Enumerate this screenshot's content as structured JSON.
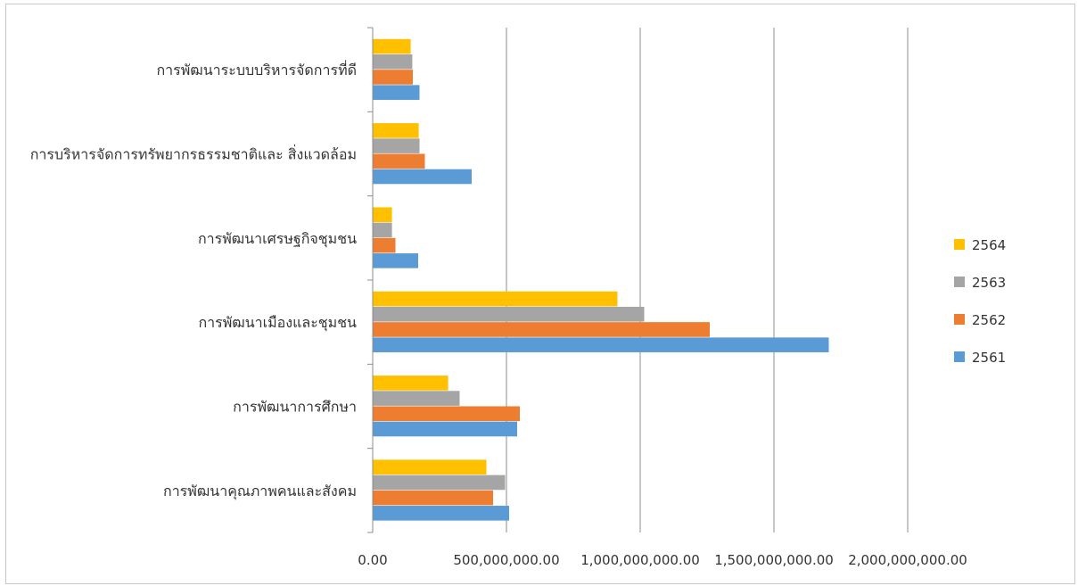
{
  "chart_data": {
    "type": "bar",
    "orientation": "horizontal",
    "categories": [
      "การพัฒนาคุณภาพคนและสังคม",
      "การพัฒนาการศึกษา",
      "การพัฒนาเมืองและชุมชน",
      "การพัฒนาเศรษฐกิจชุมชน",
      "การบริหารจัดการทรัพยากรธรรมชาติและ สิ่งแวดล้อม",
      "การพัฒนาระบบบริหารจัดการที่ดี"
    ],
    "series": [
      {
        "name": "2561",
        "color": "#5B9BD5",
        "values": [
          510000000,
          540000000,
          1705000000,
          170000000,
          370000000,
          175000000
        ]
      },
      {
        "name": "2562",
        "color": "#ED7D31",
        "values": [
          450000000,
          550000000,
          1260000000,
          85000000,
          195000000,
          150000000
        ]
      },
      {
        "name": "2563",
        "color": "#A5A5A5",
        "values": [
          495000000,
          325000000,
          1015000000,
          72000000,
          175000000,
          148000000
        ]
      },
      {
        "name": "2564",
        "color": "#FFC000",
        "values": [
          425000000,
          282000000,
          915000000,
          72000000,
          172000000,
          142000000
        ]
      }
    ],
    "x_ticks": [
      "0.00",
      "500,000,000.00",
      "1,000,000,000.00",
      "1,500,000,000.00",
      "2,000,000,000.00"
    ],
    "xlim": [
      0,
      2000000000
    ],
    "grid": true,
    "legend_position": "right",
    "legend_order": [
      "2564",
      "2563",
      "2562",
      "2561"
    ]
  }
}
